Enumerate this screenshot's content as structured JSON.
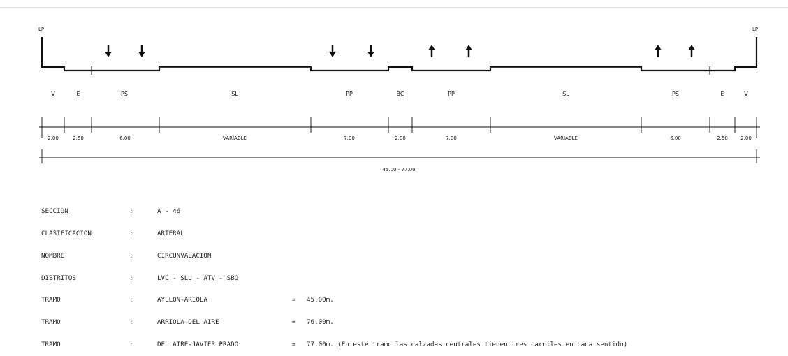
{
  "markers": {
    "left": "LP",
    "right": "LP"
  },
  "zone_labels": [
    "V",
    "E",
    "PS",
    "SL",
    "PP",
    "BC",
    "PP",
    "SL",
    "PS",
    "E",
    "V"
  ],
  "dimensions": [
    "2.00",
    "2.50",
    "6.00",
    "VARIABLE",
    "7.00",
    "2.00",
    "7.00",
    "VARIABLE",
    "6.00",
    "2.50",
    "2.00"
  ],
  "total_width": "45.00 - 77.00",
  "info": [
    {
      "key": "SECCION",
      "sep": ":",
      "value": "A - 46",
      "eq": "",
      "extra": ""
    },
    {
      "key": "CLASIFICACION",
      "sep": ":",
      "value": "ARTERAL",
      "eq": "",
      "extra": ""
    },
    {
      "key": "NOMBRE",
      "sep": ":",
      "value": "CIRCUNVALACION",
      "eq": "",
      "extra": ""
    },
    {
      "key": "DISTRITOS",
      "sep": ":",
      "value": "LVC - SLU - ATV - SBO",
      "eq": "",
      "extra": ""
    },
    {
      "key": "TRAMO",
      "sep": ":",
      "value": "AYLLON-ARIOLA",
      "eq": "=",
      "extra": "45.00m."
    },
    {
      "key": "TRAMO",
      "sep": ":",
      "value": "ARRIOLA-DEL AIRE",
      "eq": "=",
      "extra": "76.00m."
    },
    {
      "key": "TRAMO",
      "sep": ":",
      "value": "DEL AIRE-JAVIER PRADO",
      "eq": "=",
      "extra": "77.00m. (En este tramo las calzadas centrales tienen tres carriles en cada sentido)"
    }
  ]
}
